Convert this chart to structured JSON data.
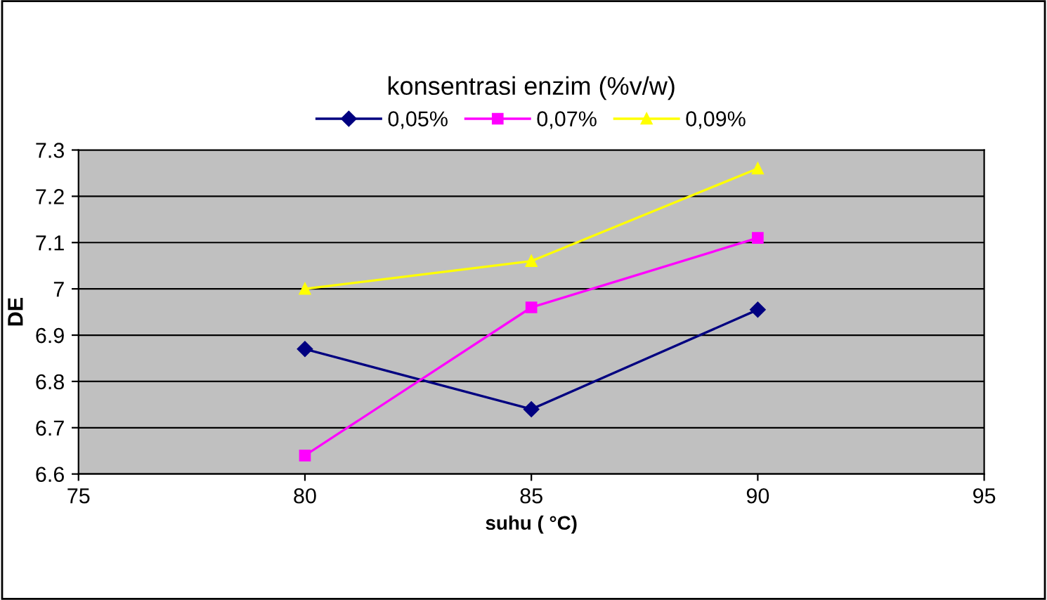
{
  "chart_data": {
    "type": "line",
    "xlabel": "suhu ( °C)",
    "ylabel": "DE",
    "legend_title": "konsentrasi enzim (%v/w)",
    "legend": "top",
    "grid": "y",
    "x": [
      80,
      85,
      90
    ],
    "series": [
      {
        "name": "0,05%",
        "color": "#000080",
        "marker": "diamond",
        "values": [
          6.87,
          6.74,
          6.955
        ]
      },
      {
        "name": "0,07%",
        "color": "#ff00ff",
        "marker": "square",
        "values": [
          6.64,
          6.96,
          7.11
        ]
      },
      {
        "name": "0,09%",
        "color": "#ffff00",
        "marker": "triangle",
        "values": [
          7.0,
          7.06,
          7.26
        ]
      }
    ],
    "xlim": [
      75,
      95
    ],
    "xticks": [
      75,
      80,
      85,
      90,
      95
    ],
    "ylim": [
      6.6,
      7.3
    ],
    "yticks": [
      6.6,
      6.7,
      6.8,
      6.9,
      {
        "value": 7.0,
        "label": "7"
      },
      7.1,
      7.2,
      7.3
    ]
  }
}
